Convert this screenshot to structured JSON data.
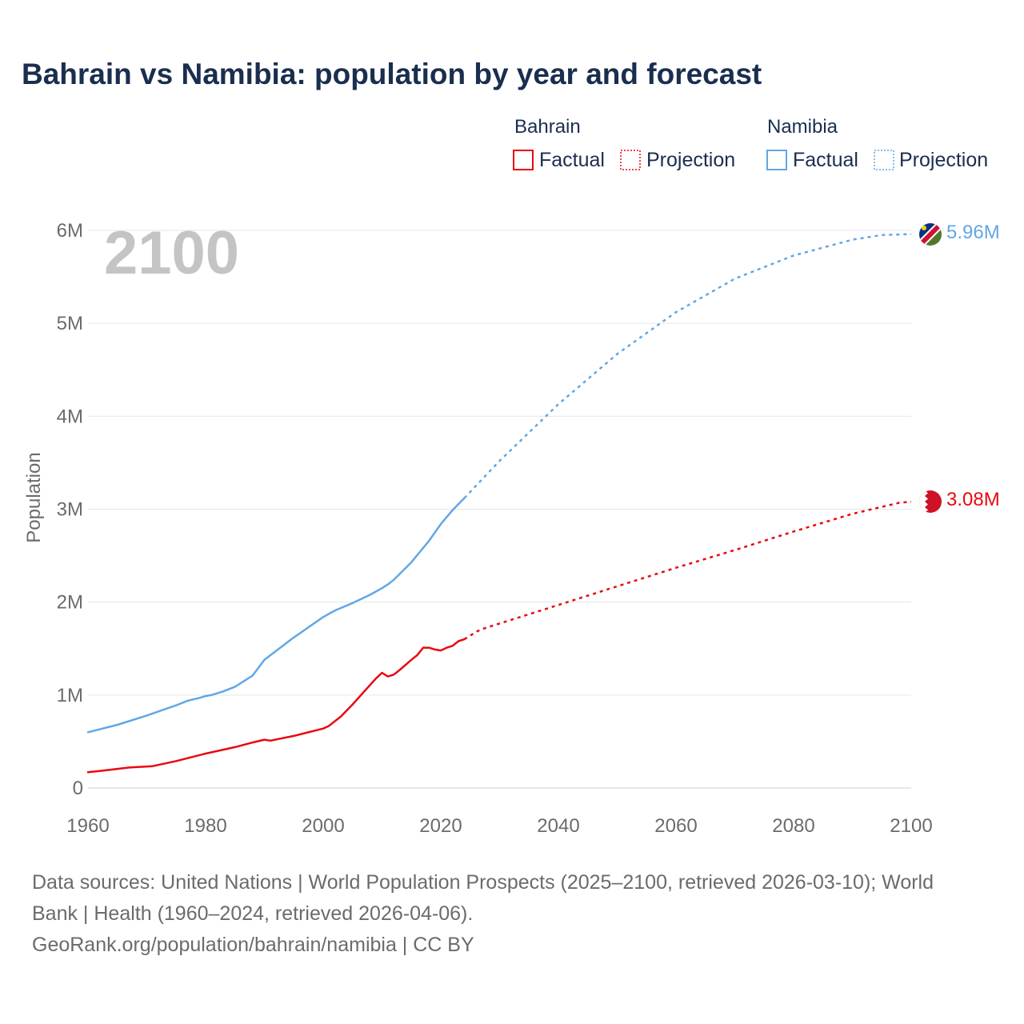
{
  "title": "Bahrain vs Namibia: population by year and forecast",
  "legend": {
    "groups": [
      {
        "name": "Bahrain",
        "factual_label": "Factual",
        "projection_label": "Projection",
        "color": "#e8090f"
      },
      {
        "name": "Namibia",
        "factual_label": "Factual",
        "projection_label": "Projection",
        "color": "#62a7e5"
      }
    ]
  },
  "year_watermark": "2100",
  "footer": {
    "line1": "Data sources: United Nations | World Population Prospects (2025–2100, retrieved 2026-03-10); World",
    "line2": "Bank | Health (1960–2024, retrieved 2026-04-06).",
    "line3": "GeoRank.org/population/bahrain/namibia | CC BY"
  },
  "chart_data": {
    "type": "line",
    "title": "Bahrain vs Namibia: population by year and forecast",
    "xlabel": "",
    "ylabel": "Population",
    "xlim": [
      1960,
      2100
    ],
    "ylim": [
      0,
      6000000
    ],
    "x_ticks": [
      1960,
      1980,
      2000,
      2020,
      2040,
      2060,
      2080,
      2100
    ],
    "x_tick_labels": [
      "1960",
      "1980",
      "2000",
      "2020",
      "2040",
      "2060",
      "2080",
      "2100"
    ],
    "y_ticks": [
      0,
      1000000,
      2000000,
      3000000,
      4000000,
      5000000,
      6000000
    ],
    "y_tick_labels": [
      "0",
      "1M",
      "2M",
      "3M",
      "4M",
      "5M",
      "6M"
    ],
    "grid": true,
    "series": [
      {
        "name": "Bahrain",
        "color": "#e8090f",
        "end_label": "3.08M",
        "factual": {
          "x": [
            1960,
            1963,
            1967,
            1971,
            1975,
            1980,
            1985,
            1988,
            1990,
            1991,
            1995,
            2000,
            2001,
            2003,
            2005,
            2007,
            2009,
            2010,
            2011,
            2012,
            2013,
            2015,
            2016,
            2017,
            2018,
            2019,
            2020,
            2021,
            2022,
            2023,
            2024
          ],
          "y": [
            170000,
            190000,
            220000,
            235000,
            290000,
            370000,
            440000,
            490000,
            520000,
            510000,
            560000,
            640000,
            670000,
            770000,
            900000,
            1040000,
            1180000,
            1240000,
            1200000,
            1220000,
            1270000,
            1380000,
            1430000,
            1510000,
            1510000,
            1490000,
            1480000,
            1510000,
            1530000,
            1580000,
            1600000
          ]
        },
        "projection": {
          "x": [
            2024,
            2025,
            2026,
            2027,
            2028,
            2030,
            2040,
            2050,
            2060,
            2070,
            2080,
            2090,
            2098,
            2100
          ],
          "y": [
            1600000,
            1640000,
            1680000,
            1710000,
            1730000,
            1770000,
            1970000,
            2170000,
            2370000,
            2560000,
            2760000,
            2950000,
            3070000,
            3080000
          ]
        }
      },
      {
        "name": "Namibia",
        "color": "#62a7e5",
        "end_label": "5.96M",
        "factual": {
          "x": [
            1960,
            1965,
            1970,
            1975,
            1977,
            1979,
            1980,
            1981,
            1983,
            1985,
            1988,
            1990,
            1995,
            2000,
            2002,
            2005,
            2008,
            2010,
            2011,
            2012,
            2015,
            2018,
            2020,
            2022,
            2024
          ],
          "y": [
            600000,
            680000,
            780000,
            890000,
            940000,
            970000,
            990000,
            1000000,
            1040000,
            1090000,
            1210000,
            1380000,
            1620000,
            1840000,
            1910000,
            1990000,
            2080000,
            2150000,
            2190000,
            2240000,
            2430000,
            2660000,
            2840000,
            2990000,
            3120000
          ]
        },
        "projection": {
          "x": [
            2024,
            2030,
            2040,
            2050,
            2060,
            2070,
            2080,
            2090,
            2095,
            2100
          ],
          "y": [
            3120000,
            3520000,
            4130000,
            4670000,
            5120000,
            5480000,
            5730000,
            5900000,
            5950000,
            5960000
          ]
        }
      }
    ]
  }
}
